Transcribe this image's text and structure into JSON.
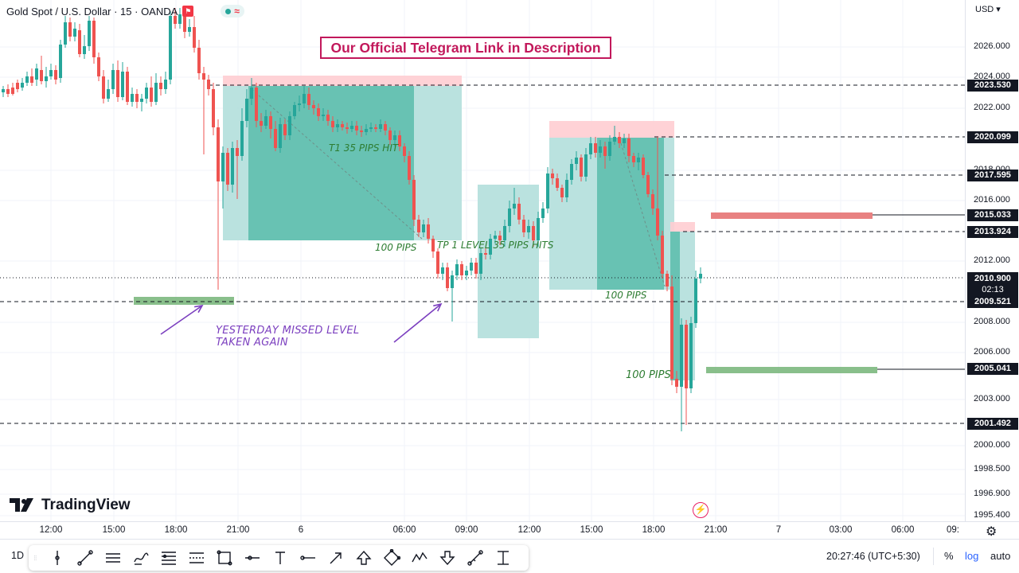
{
  "legend": {
    "symbol": "Gold Spot / U.S. Dollar · 15 · OANDA",
    "flag_icon": "flag-icon",
    "pill_icon": "wave-icon"
  },
  "banner": "Our Official Telegram Link in Description",
  "annotations": {
    "t1_hit": "T1 35 PIPS HIT",
    "pips_100_a": "100 PIPS",
    "tp1_level": "TP 1 LEVEL 35 PIPS HITS",
    "pips_100_b": "100 PIPS",
    "pips_100_c": "100 PIPS",
    "yesterday_line1": "YESTERDAY MISSED LEVEL",
    "yesterday_line2": "TAKEN AGAIN"
  },
  "currency_menu": "USD ▾",
  "price_axis": {
    "ticks": [
      "2026.000",
      "2024.000",
      "2022.000",
      "2018.000",
      "2016.000",
      "2012.000",
      "2008.000",
      "2006.000",
      "2003.000",
      "2000.000",
      "1998.500",
      "1996.900",
      "1995.400"
    ],
    "tags": [
      "2023.530",
      "2020.099",
      "2017.595",
      "2015.033",
      "2013.924",
      "2009.521",
      "2005.041",
      "2001.492"
    ],
    "current_price": "2010.900",
    "countdown": "02:13"
  },
  "time_axis": [
    "12:00",
    "15:00",
    "18:00",
    "21:00",
    "6",
    "06:00",
    "09:00",
    "12:00",
    "15:00",
    "18:00",
    "21:00",
    "7",
    "03:00",
    "06:00",
    "09:"
  ],
  "logo_text": "TradingView",
  "bottom_bar": {
    "interval": "1D",
    "clock": "20:27:46 (UTC+5:30)",
    "percent": "%",
    "log": "log",
    "auto": "auto"
  },
  "tools": [
    "grip-icon",
    "vertical-line-icon",
    "trend-line-icon",
    "parallel-channel-icon",
    "brush-icon",
    "fib-retracement-icon",
    "regression-icon",
    "rectangle-icon",
    "path-icon",
    "text-icon",
    "horizontal-ray-icon",
    "arrow-icon",
    "arrow-mark-up-icon",
    "rotated-rectangle-icon",
    "elliott-wave-icon",
    "arrow-mark-down-icon",
    "ruler-icon",
    "date-range-icon"
  ],
  "colors": {
    "up": "#26a69a",
    "down": "#ef5350",
    "zone_target": "#b2dfdb",
    "zone_stop": "#ffcdd2",
    "banner": "#c2185b",
    "annotation_green": "#2e7d32",
    "annotation_purple": "#7b3fbf"
  }
}
